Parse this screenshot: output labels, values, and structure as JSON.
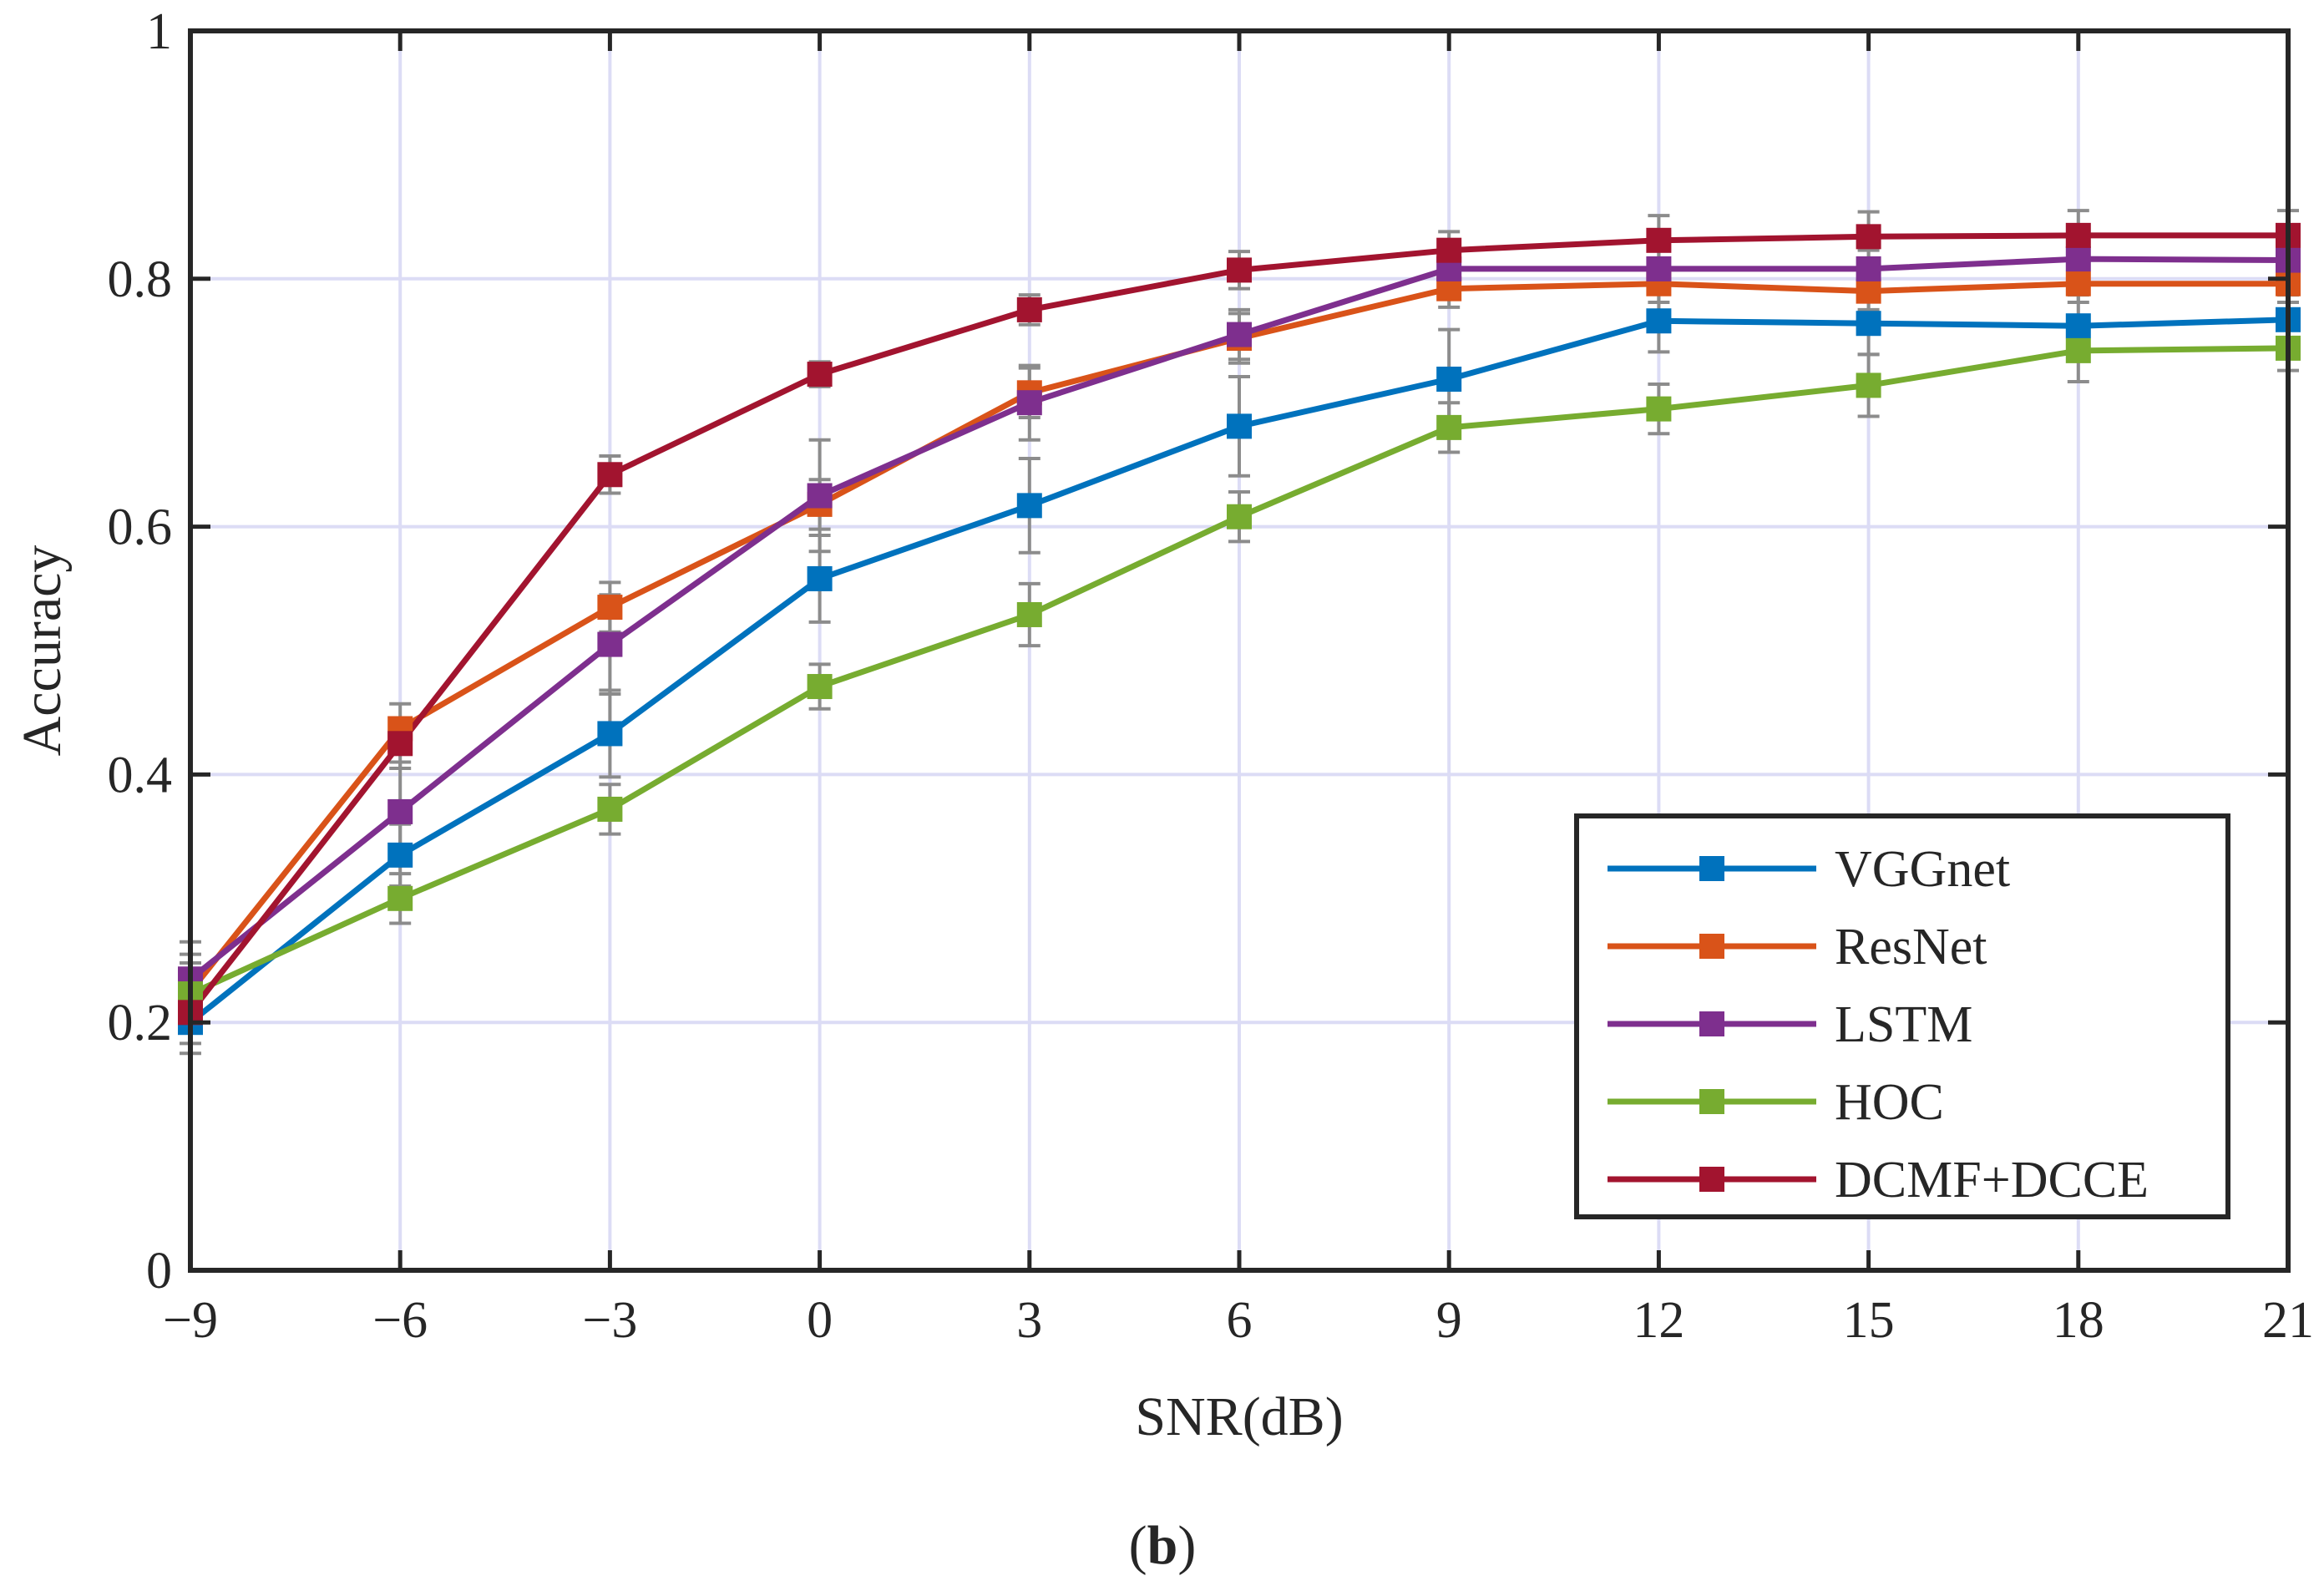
{
  "chart_data": {
    "type": "line",
    "caption": {
      "open": "(",
      "label": "b",
      "close": ")"
    },
    "xlabel": "SNR(dB)",
    "ylabel": "Accuracy",
    "xlim": [
      -9,
      21
    ],
    "ylim": [
      0,
      1
    ],
    "grid": true,
    "legend_position": "bottom-right",
    "x": [
      -9,
      -6,
      -3,
      0,
      3,
      6,
      9,
      12,
      15,
      18,
      21
    ],
    "x_tick_labels": [
      "−9",
      "−6",
      "−3",
      "0",
      "3",
      "6",
      "9",
      "12",
      "15",
      "18",
      "21"
    ],
    "y_ticks": [
      0,
      0.2,
      0.4,
      0.6,
      0.8,
      1
    ],
    "y_tick_labels": [
      "0",
      "0.2",
      "0.4",
      "0.6",
      "0.8",
      "1"
    ],
    "series": [
      {
        "name": "VGGnet",
        "color": "#0072BD",
        "values": [
          0.2,
          0.335,
          0.433,
          0.558,
          0.617,
          0.681,
          0.719,
          0.766,
          0.764,
          0.762,
          0.767
        ],
        "errors": [
          0.025,
          0.025,
          0.035,
          0.035,
          0.038,
          0.04,
          0.04,
          0.025,
          0.025,
          0.025,
          0.02
        ]
      },
      {
        "name": "ResNet",
        "color": "#D95319",
        "values": [
          0.225,
          0.437,
          0.535,
          0.618,
          0.708,
          0.752,
          0.792,
          0.796,
          0.79,
          0.796,
          0.796
        ],
        "errors": [
          0.03,
          0.02,
          0.02,
          0.02,
          0.02,
          0.02,
          0.015,
          0.015,
          0.015,
          0.015,
          0.015
        ]
      },
      {
        "name": "LSTM",
        "color": "#7E2F8E",
        "values": [
          0.235,
          0.37,
          0.505,
          0.625,
          0.7,
          0.755,
          0.808,
          0.808,
          0.808,
          0.816,
          0.815
        ],
        "errors": [
          0.03,
          0.04,
          0.04,
          0.045,
          0.03,
          0.02,
          0.015,
          0.015,
          0.015,
          0.015,
          0.015
        ]
      },
      {
        "name": "HOC",
        "color": "#77AC30",
        "values": [
          0.223,
          0.3,
          0.372,
          0.471,
          0.529,
          0.608,
          0.68,
          0.695,
          0.714,
          0.742,
          0.744
        ],
        "errors": [
          0.025,
          0.02,
          0.02,
          0.018,
          0.025,
          0.02,
          0.02,
          0.02,
          0.025,
          0.025,
          0.018
        ]
      },
      {
        "name": "DCMF+DCCE",
        "color": "#A2142F",
        "values": [
          0.208,
          0.425,
          0.642,
          0.723,
          0.775,
          0.807,
          0.823,
          0.831,
          0.834,
          0.835,
          0.835
        ],
        "errors": [
          0.025,
          0.02,
          0.015,
          0.01,
          0.012,
          0.015,
          0.015,
          0.02,
          0.02,
          0.02,
          0.02
        ]
      }
    ]
  }
}
